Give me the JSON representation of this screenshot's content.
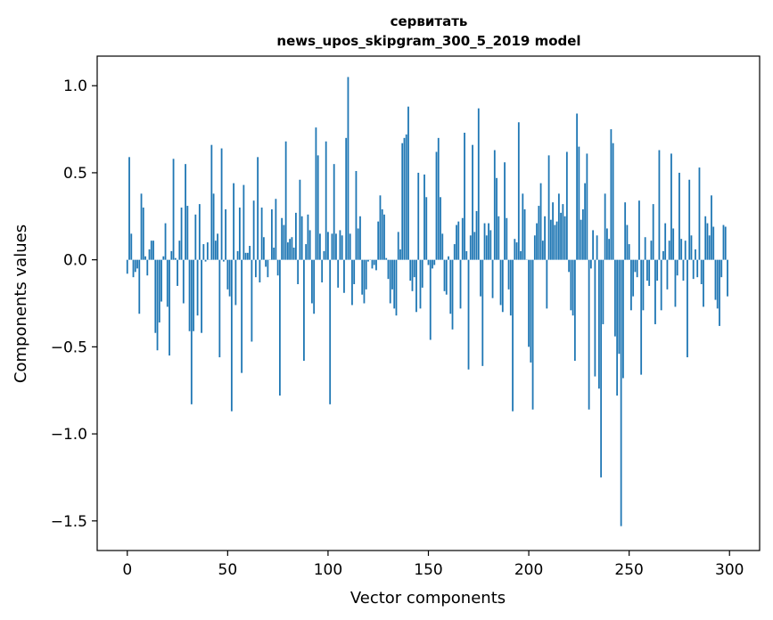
{
  "chart_data": {
    "type": "bar",
    "title_line1": "сервитать",
    "title_line2": "news_upos_skipgram_300_5_2019 model",
    "xlabel": "Vector components",
    "ylabel": "Components values",
    "xlim": [
      -15,
      315
    ],
    "ylim": [
      -1.67,
      1.17
    ],
    "xticks": [
      0,
      50,
      100,
      150,
      200,
      250,
      300
    ],
    "xtick_labels": [
      "0",
      "50",
      "100",
      "150",
      "200",
      "250",
      "300"
    ],
    "yticks": [
      1.0,
      0.5,
      0.0,
      -0.5,
      -1.0,
      -1.5
    ],
    "ytick_labels": [
      "1.0",
      "0.5",
      "0.0",
      "−0.5",
      "−1.0",
      "−1.5"
    ],
    "bar_color": "#1f77b4",
    "values": [
      -0.08,
      0.59,
      0.15,
      -0.1,
      -0.07,
      -0.05,
      -0.31,
      0.38,
      0.3,
      0.02,
      -0.09,
      0.06,
      0.11,
      0.11,
      -0.42,
      -0.52,
      -0.36,
      -0.24,
      0.02,
      0.21,
      -0.27,
      -0.55,
      0.05,
      0.58,
      0.01,
      -0.15,
      0.11,
      0.3,
      -0.25,
      0.55,
      0.31,
      -0.41,
      -0.83,
      -0.41,
      0.26,
      -0.32,
      0.32,
      -0.42,
      0.09,
      -0.01,
      0.1,
      0.0,
      0.66,
      0.38,
      0.11,
      0.15,
      -0.56,
      0.64,
      -0.01,
      0.29,
      -0.17,
      -0.21,
      -0.87,
      0.44,
      -0.26,
      0.05,
      0.3,
      -0.65,
      0.43,
      0.04,
      0.04,
      0.08,
      -0.47,
      0.34,
      -0.1,
      0.59,
      -0.13,
      0.3,
      0.13,
      -0.04,
      -0.1,
      0.0,
      0.29,
      0.07,
      0.35,
      -0.09,
      -0.78,
      0.24,
      0.2,
      0.68,
      0.1,
      0.12,
      0.13,
      0.07,
      0.27,
      -0.14,
      0.46,
      0.25,
      -0.58,
      0.09,
      0.26,
      0.17,
      -0.25,
      -0.31,
      0.76,
      0.6,
      0.15,
      -0.13,
      0.05,
      0.68,
      0.16,
      -0.83,
      0.15,
      0.55,
      0.15,
      -0.16,
      0.17,
      0.14,
      -0.19,
      0.7,
      1.05,
      0.15,
      -0.26,
      -0.14,
      0.51,
      0.18,
      0.25,
      -0.2,
      -0.25,
      -0.17,
      -0.01,
      0.0,
      -0.05,
      -0.03,
      -0.06,
      0.22,
      0.37,
      0.29,
      0.26,
      0.01,
      -0.11,
      -0.25,
      -0.17,
      -0.28,
      -0.32,
      0.16,
      0.06,
      0.67,
      0.7,
      0.72,
      0.88,
      -0.12,
      -0.18,
      -0.1,
      -0.3,
      0.5,
      -0.28,
      -0.16,
      0.49,
      0.36,
      -0.03,
      -0.46,
      -0.05,
      -0.03,
      0.62,
      0.7,
      0.36,
      0.15,
      -0.18,
      -0.2,
      0.02,
      -0.31,
      -0.4,
      0.09,
      0.2,
      0.22,
      -0.28,
      0.24,
      0.73,
      0.05,
      -0.63,
      0.14,
      0.66,
      0.16,
      0.28,
      0.87,
      -0.21,
      -0.61,
      0.21,
      0.14,
      0.21,
      0.17,
      -0.22,
      0.63,
      0.47,
      0.25,
      -0.26,
      -0.3,
      0.56,
      0.24,
      -0.17,
      -0.32,
      -0.87,
      0.12,
      0.1,
      0.79,
      0.05,
      0.38,
      0.29,
      0.0,
      -0.5,
      -0.59,
      -0.86,
      0.14,
      0.21,
      0.31,
      0.44,
      0.11,
      0.25,
      -0.28,
      0.6,
      0.23,
      0.33,
      0.2,
      0.22,
      0.38,
      0.27,
      0.32,
      0.25,
      0.62,
      -0.07,
      -0.29,
      -0.32,
      -0.58,
      0.84,
      0.65,
      0.23,
      0.29,
      0.44,
      0.61,
      -0.86,
      -0.05,
      0.17,
      -0.67,
      0.14,
      -0.74,
      -1.25,
      -0.37,
      0.38,
      0.18,
      0.12,
      0.75,
      0.67,
      -0.44,
      -0.78,
      -0.54,
      -1.53,
      -0.68,
      0.33,
      0.2,
      0.09,
      -0.29,
      -0.21,
      -0.07,
      -0.1,
      0.34,
      -0.66,
      -0.29,
      0.13,
      -0.12,
      -0.15,
      0.11,
      0.32,
      -0.37,
      -0.12,
      0.63,
      -0.29,
      0.05,
      0.21,
      -0.17,
      0.11,
      0.61,
      0.18,
      -0.27,
      -0.09,
      0.5,
      0.12,
      -0.12,
      0.11,
      -0.56,
      0.46,
      0.14,
      -0.11,
      0.06,
      -0.1,
      0.53,
      -0.14,
      -0.27,
      0.25,
      0.21,
      0.14,
      0.37,
      0.19,
      -0.23,
      -0.28,
      -0.38,
      -0.1,
      0.2,
      0.19,
      -0.21
    ]
  }
}
